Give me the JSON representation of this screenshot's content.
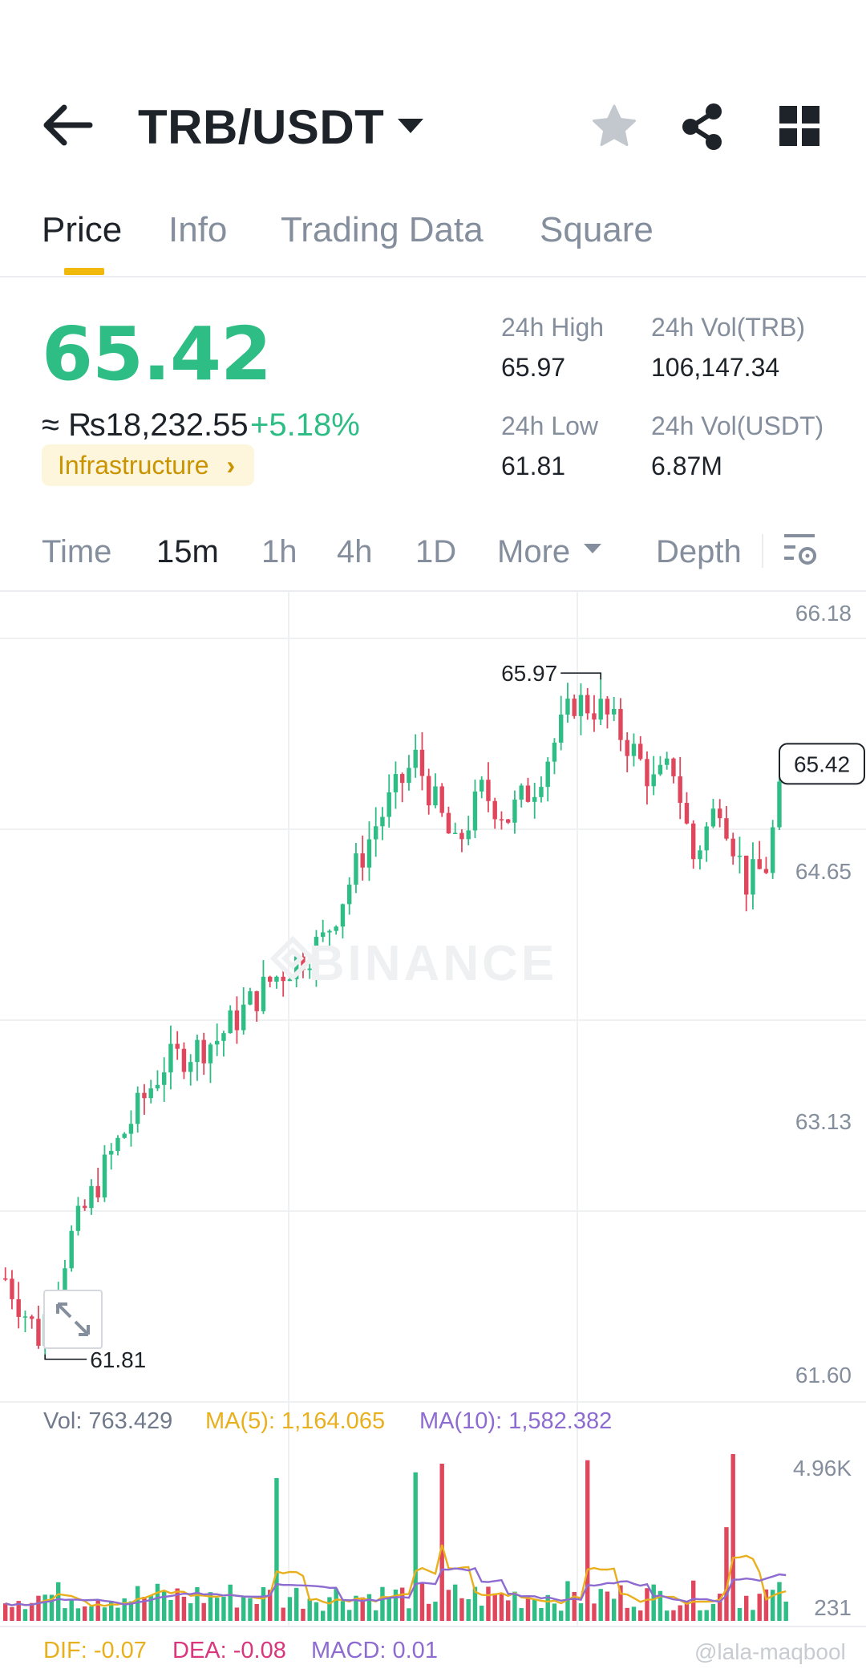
{
  "header": {
    "pair": "TRB/USDT",
    "icons": [
      "back-arrow-icon",
      "dropdown-caret-icon",
      "star-icon",
      "share-icon",
      "grid-icon"
    ]
  },
  "tabs": [
    {
      "label": "Price",
      "active": true
    },
    {
      "label": "Info",
      "active": false
    },
    {
      "label": "Trading Data",
      "active": false
    },
    {
      "label": "Square",
      "active": false
    }
  ],
  "price": {
    "last": "65.42",
    "fiat": "≈ ₨18,232.55",
    "change": "+5.18%",
    "tag": "Infrastructure",
    "tag_chevron": "›"
  },
  "stats": {
    "high_label": "24h High",
    "high_value": "65.97",
    "low_label": "24h Low",
    "low_value": "61.81",
    "vol_trb_label": "24h Vol(TRB)",
    "vol_trb_value": "106,147.34",
    "vol_usdt_label": "24h Vol(USDT)",
    "vol_usdt_value": "6.87M"
  },
  "timeframes": {
    "items": [
      {
        "label": "Time",
        "active": false
      },
      {
        "label": "15m",
        "active": true
      },
      {
        "label": "1h",
        "active": false
      },
      {
        "label": "4h",
        "active": false
      },
      {
        "label": "1D",
        "active": false
      },
      {
        "label": "More",
        "active": false
      },
      {
        "label": "Depth",
        "active": false
      }
    ]
  },
  "colors": {
    "up": "#2ebd85",
    "down": "#e0475c",
    "accent": "#f0b90b",
    "ma5": "#e9b01e",
    "ma10": "#8e6bd1",
    "dea": "#d9367e"
  },
  "watermark": "BINANCE",
  "bottom_watermark": "@lala-maqbool",
  "volume_legend": {
    "vol": "Vol: 763.429",
    "ma5": "MA(5): 1,164.065",
    "ma10": "MA(10): 1,582.382"
  },
  "macd_legend": {
    "dif": "DIF: -0.07",
    "dea": "DEA: -0.08",
    "macd": "MACD: 0.01"
  },
  "chart_data": {
    "type": "candlestick",
    "price_axis": {
      "ticks": [
        "66.18",
        "64.65",
        "63.13",
        "61.60"
      ],
      "ylim": [
        61.6,
        66.18
      ]
    },
    "volume_axis": {
      "ticks": [
        "4.96K",
        "231"
      ],
      "ylim": [
        0,
        4960
      ]
    },
    "last_price_label": "65.42",
    "high_marker": {
      "label": "65.97",
      "value": 65.97
    },
    "low_marker": {
      "label": "61.81",
      "value": 61.81
    },
    "candles": [],
    "volume": [],
    "ma5": [],
    "ma10": []
  }
}
